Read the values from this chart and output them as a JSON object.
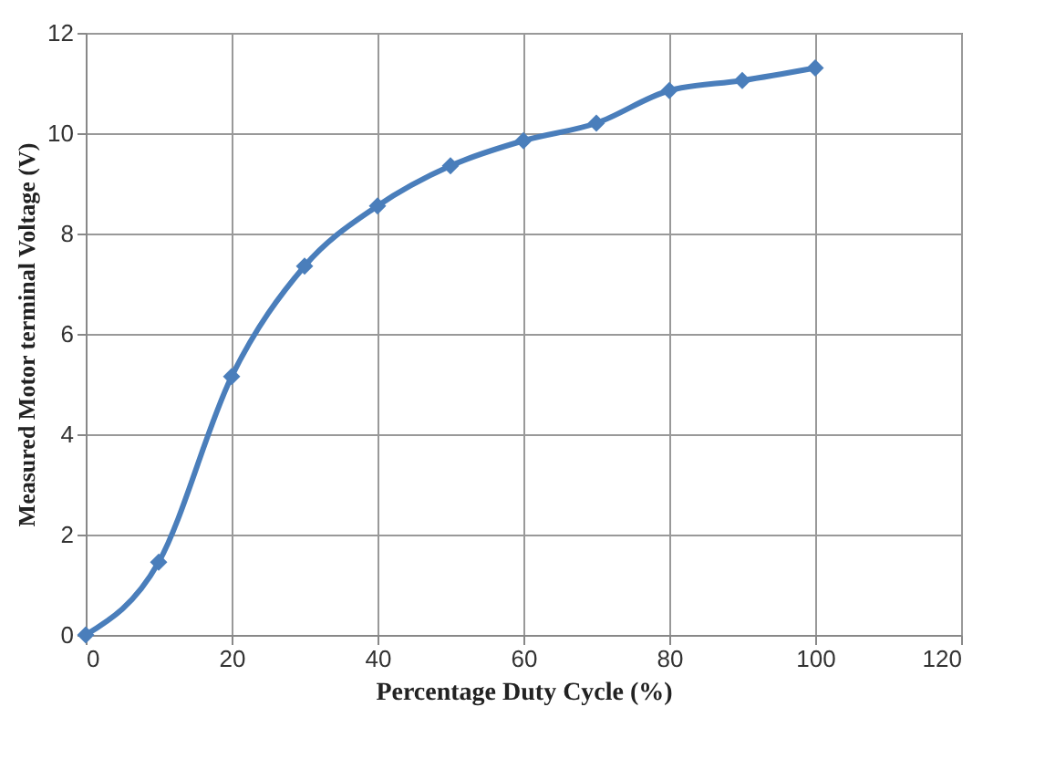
{
  "chart_data": {
    "type": "line",
    "xlabel": "Percentage Duty  Cycle (%)",
    "ylabel": "Measured Motor terminal Voltage (V)",
    "x": [
      0,
      10,
      20,
      30,
      40,
      50,
      60,
      70,
      80,
      90,
      100
    ],
    "series": [
      {
        "color": "#4a7ebb",
        "values": [
          0,
          1.45,
          5.15,
          7.35,
          8.55,
          9.35,
          9.85,
          10.2,
          10.85,
          11.05,
          11.3
        ]
      }
    ],
    "xlim": [
      0,
      120
    ],
    "xticks": [
      0,
      20,
      40,
      60,
      80,
      100,
      120
    ],
    "ylim": [
      0,
      12
    ],
    "yticks": [
      0,
      2,
      4,
      6,
      8,
      10,
      12
    ],
    "grid": true,
    "marker": "diamond",
    "line_style": "solid"
  }
}
